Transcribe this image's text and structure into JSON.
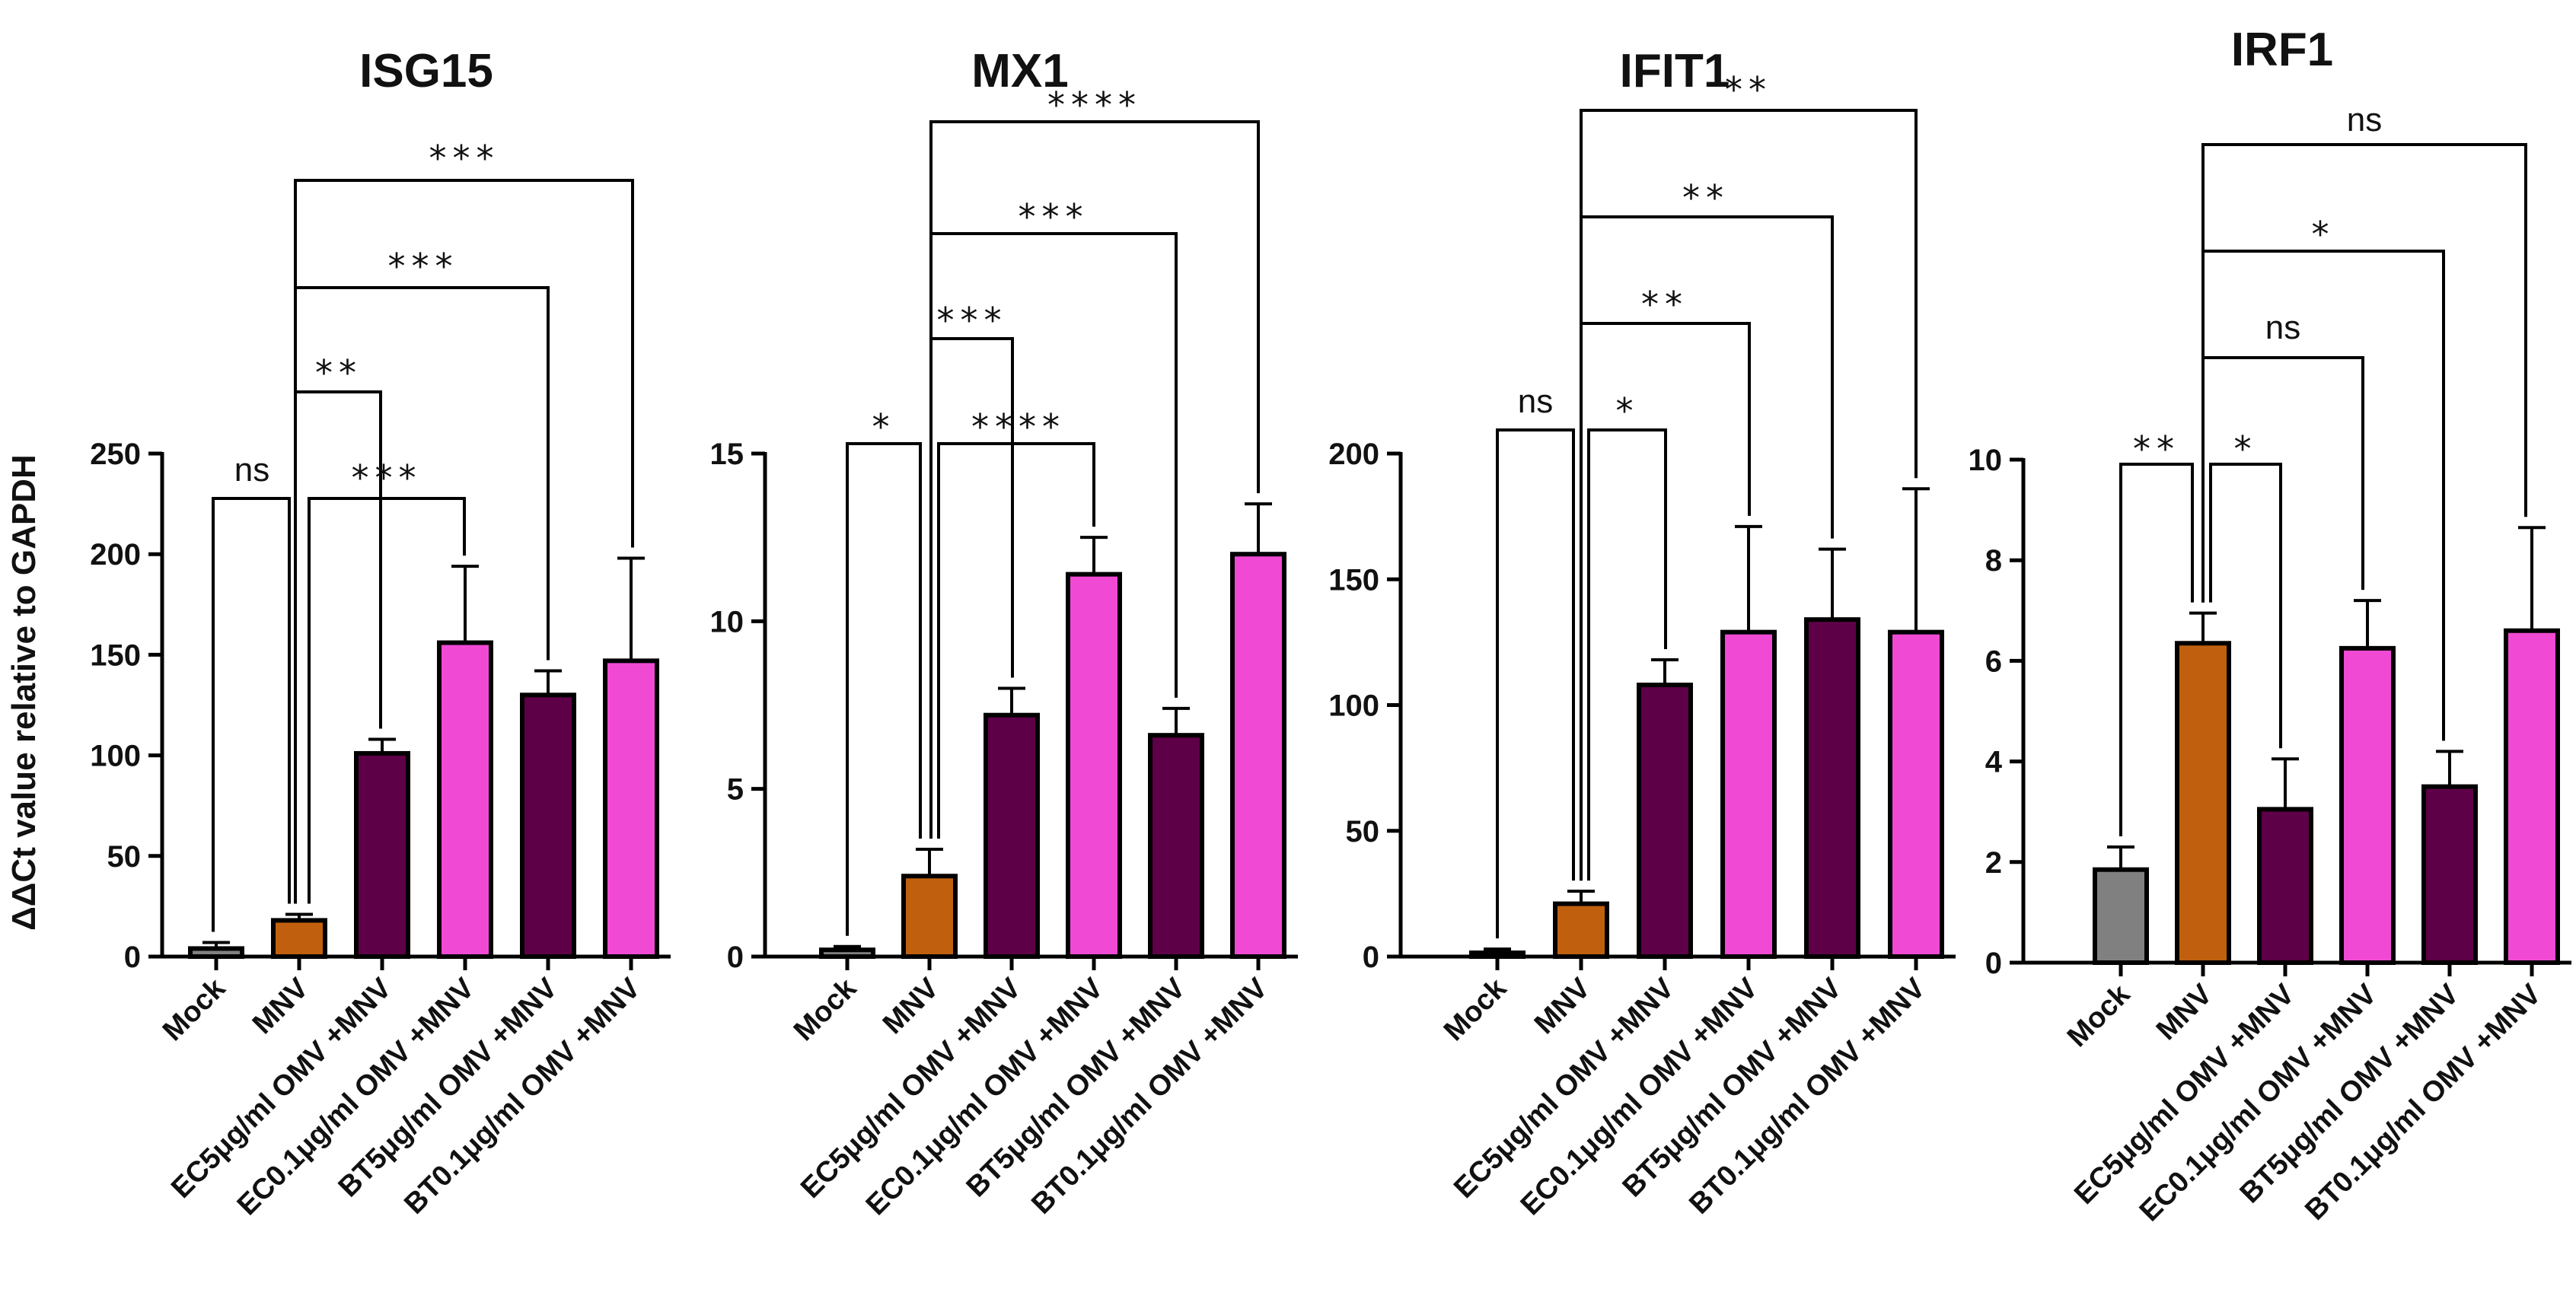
{
  "ylabel": "ΔΔCt value relative to GAPDH",
  "colors": {
    "Mock": "#808080",
    "MNV": "#c0600e",
    "EC5": "#5e0048",
    "EC0.1": "#f04ad4",
    "BT5": "#5e0048",
    "BT0.1": "#f04ad4"
  },
  "chart_data": [
    {
      "type": "bar",
      "title": "ISG15",
      "categories": [
        "Mock",
        "MNV",
        "EC5μg/ml OMV +MNV",
        "EC0.1μg/ml OMV +MNV",
        "BT5μg/ml OMV +MNV",
        "BT0.1μg/ml OMV +MNV"
      ],
      "values": [
        4,
        18,
        101,
        156,
        130,
        147
      ],
      "errors": [
        3,
        3,
        7,
        38,
        12,
        51
      ],
      "ylim": [
        0,
        250
      ],
      "yticks": [
        "0",
        "50",
        "100",
        "150",
        "200",
        "250"
      ],
      "comparisons": [
        {
          "from": 0,
          "to": 1,
          "label": "ns"
        },
        {
          "from": 1,
          "to": 2,
          "label": "**"
        },
        {
          "from": 1,
          "to": 3,
          "label": "***"
        },
        {
          "from": 1,
          "to": 4,
          "label": "***"
        },
        {
          "from": 1,
          "to": 5,
          "label": "***"
        }
      ]
    },
    {
      "type": "bar",
      "title": "MX1",
      "categories": [
        "Mock",
        "MNV",
        "EC5μg/ml OMV +MNV",
        "EC0.1μg/ml OMV +MNV",
        "BT5μg/ml OMV +MNV",
        "BT0.1μg/ml OMV +MNV"
      ],
      "values": [
        0.2,
        2.4,
        7.2,
        11.4,
        6.6,
        12.0
      ],
      "errors": [
        0.1,
        0.8,
        0.8,
        1.1,
        0.8,
        1.5
      ],
      "ylim": [
        0,
        15
      ],
      "yticks": [
        "0",
        "5",
        "10",
        "15"
      ],
      "comparisons": [
        {
          "from": 0,
          "to": 1,
          "label": "*"
        },
        {
          "from": 1,
          "to": 3,
          "label": "****"
        },
        {
          "from": 1,
          "to": 2,
          "label": "***"
        },
        {
          "from": 1,
          "to": 4,
          "label": "***"
        },
        {
          "from": 1,
          "to": 5,
          "label": "****"
        }
      ]
    },
    {
      "type": "bar",
      "title": "IFIT1",
      "categories": [
        "Mock",
        "MNV",
        "EC5μg/ml OMV +MNV",
        "EC0.1μg/ml OMV +MNV",
        "BT5μg/ml OMV +MNV",
        "BT0.1μg/ml OMV +MNV"
      ],
      "values": [
        1.5,
        21,
        108,
        129,
        134,
        129
      ],
      "errors": [
        1.5,
        5,
        10,
        42,
        28,
        57
      ],
      "ylim": [
        0,
        200
      ],
      "yticks": [
        "0",
        "50",
        "100",
        "150",
        "200"
      ],
      "comparisons": [
        {
          "from": 0,
          "to": 1,
          "label": "ns"
        },
        {
          "from": 1,
          "to": 2,
          "label": "*"
        },
        {
          "from": 1,
          "to": 3,
          "label": "**"
        },
        {
          "from": 1,
          "to": 4,
          "label": "**"
        },
        {
          "from": 1,
          "to": 5,
          "label": "**"
        }
      ]
    },
    {
      "type": "bar",
      "title": "IRF1",
      "categories": [
        "Mock",
        "MNV",
        "EC5μg/ml OMV +MNV",
        "EC0.1μg/ml OMV +MNV",
        "BT5μg/ml OMV +MNV",
        "BT0.1μg/ml OMV +MNV"
      ],
      "values": [
        1.85,
        6.35,
        3.05,
        6.25,
        3.5,
        6.6
      ],
      "errors": [
        0.45,
        0.6,
        1.0,
        0.95,
        0.7,
        2.05
      ],
      "ylim": [
        0,
        10
      ],
      "yticks": [
        "0",
        "2",
        "4",
        "6",
        "8",
        "10"
      ],
      "comparisons": [
        {
          "from": 0,
          "to": 1,
          "label": "**"
        },
        {
          "from": 1,
          "to": 2,
          "label": "*"
        },
        {
          "from": 1,
          "to": 3,
          "label": "ns"
        },
        {
          "from": 1,
          "to": 4,
          "label": "*"
        },
        {
          "from": 1,
          "to": 5,
          "label": "ns"
        }
      ]
    }
  ]
}
